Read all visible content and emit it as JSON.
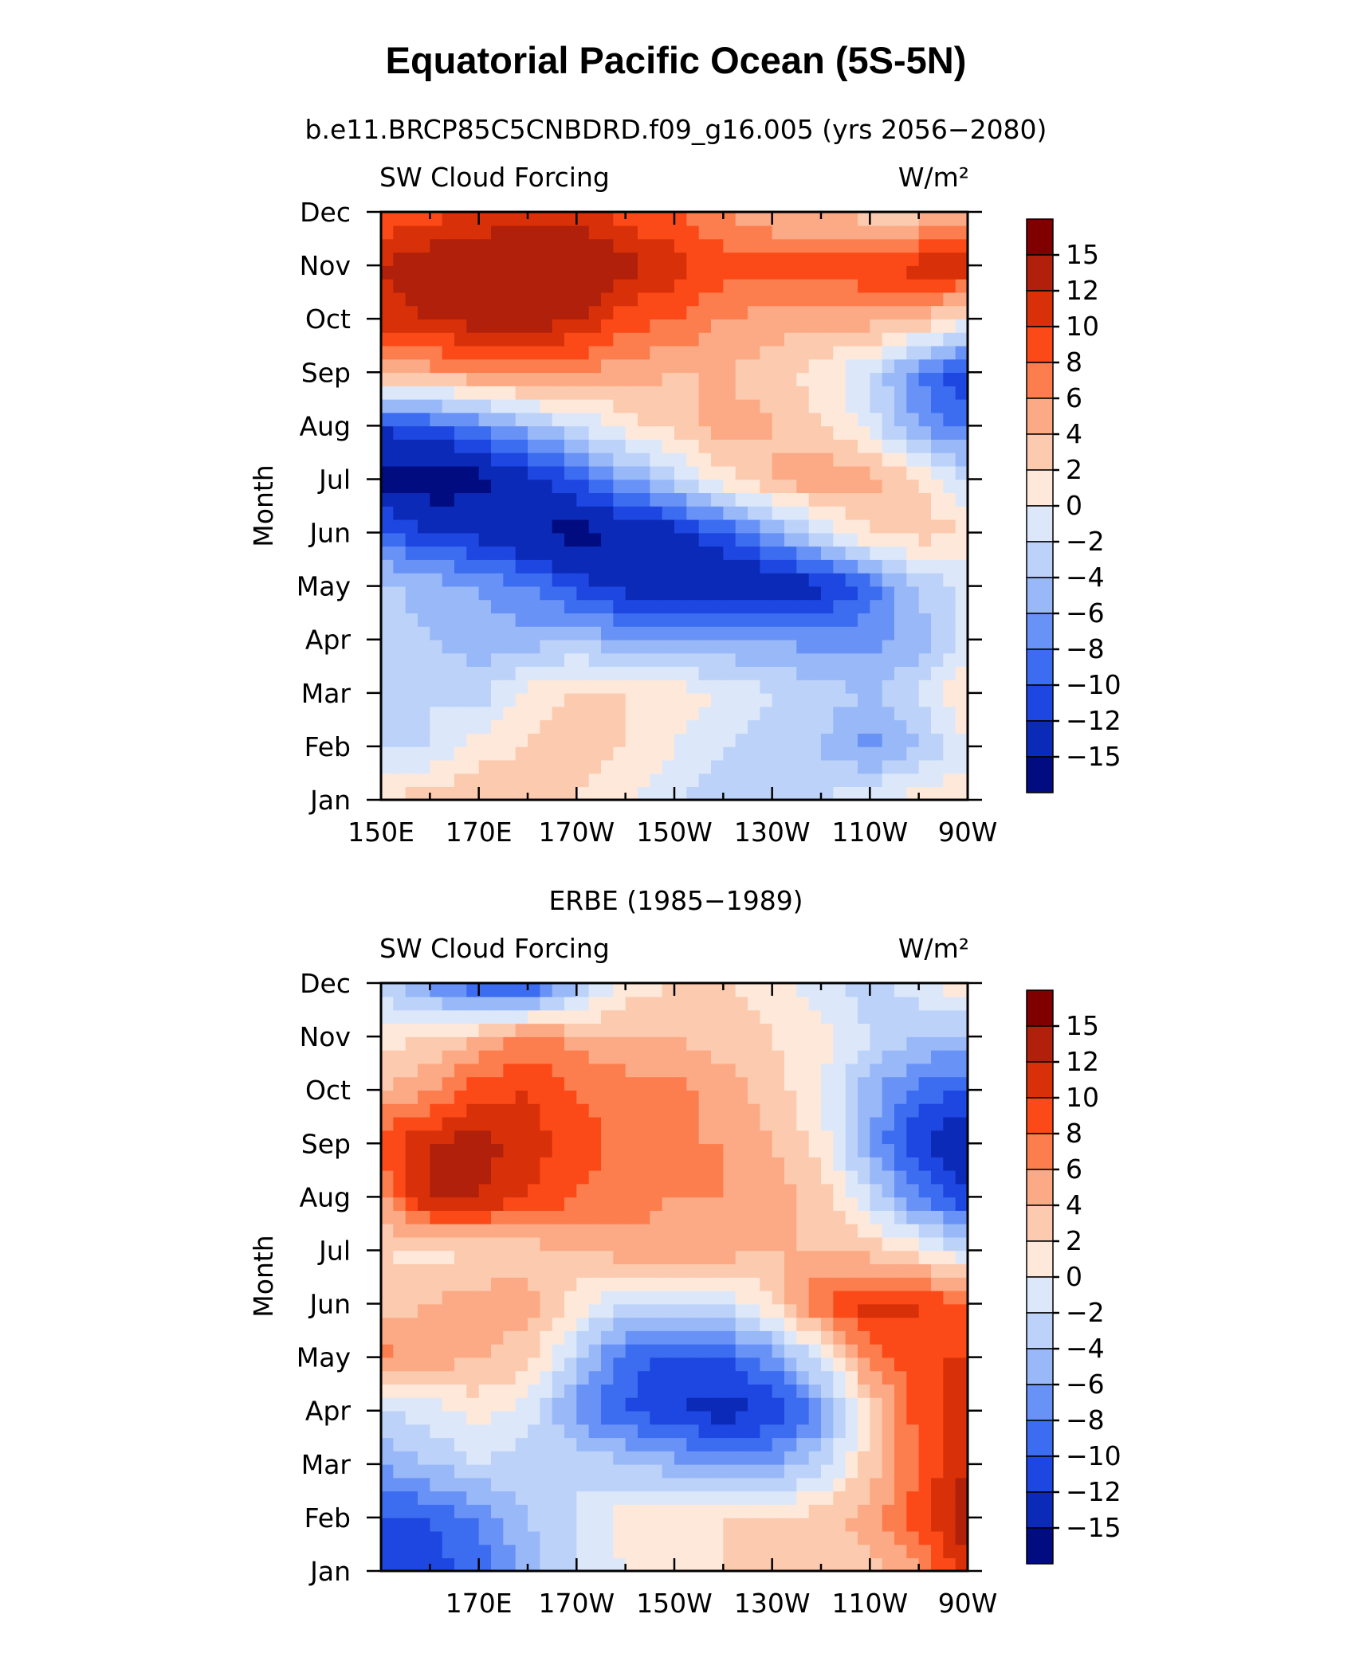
{
  "title": "Equatorial Pacific Ocean (5S-5N)",
  "colorbar": {
    "labels": [
      "15",
      "12",
      "10",
      "8",
      "6",
      "4",
      "2",
      "0",
      "−2",
      "−4",
      "−6",
      "−8",
      "−10",
      "−12",
      "−15"
    ],
    "colors": [
      "#800000",
      "#B0200A",
      "#D83008",
      "#FB4A18",
      "#FC7E4E",
      "#FCAA86",
      "#FCCAAE",
      "#FEE8DA",
      "#DCE8FA",
      "#BCD2F8",
      "#98B8F8",
      "#6892F6",
      "#3C6CF0",
      "#1E46E0",
      "#0C2AB8",
      "#000C80"
    ]
  },
  "chart_data": [
    {
      "type": "heatmap",
      "subtitle": "b.e11.BRCP85C5CNBDRD.f09_g16.005 (yrs 2056−2080)",
      "left_label": "SW Cloud Forcing",
      "right_label": "W/m²",
      "ylabel": "Month",
      "xticks": [
        "150E",
        "170E",
        "170W",
        "150W",
        "130W",
        "110W",
        "90W"
      ],
      "yticks": [
        "Jan",
        "Feb",
        "Mar",
        "Apr",
        "May",
        "Jun",
        "Jul",
        "Aug",
        "Sep",
        "Oct",
        "Nov",
        "Dec"
      ],
      "xlim": [
        150,
        270
      ],
      "units": "W/m²",
      "lon": [
        150,
        160,
        170,
        180,
        190,
        200,
        210,
        220,
        230,
        240,
        250,
        260,
        270
      ],
      "values": [
        [
          2,
          3,
          4,
          3,
          2,
          0,
          -2,
          -4,
          -2,
          -2,
          0,
          1,
          2
        ],
        [
          -2,
          -2,
          1,
          2,
          3,
          2,
          0,
          -2,
          -3,
          -4,
          -7,
          -4,
          -1
        ],
        [
          -3,
          -2,
          -3,
          1,
          2,
          2,
          1,
          0,
          -2,
          -3,
          -4,
          -2,
          3
        ],
        [
          -3,
          -4,
          -5,
          -5,
          -4,
          -6,
          -6,
          -6,
          -6,
          -7,
          -7,
          -5,
          -1
        ],
        [
          -3,
          -5,
          -6,
          -8,
          -11,
          -13,
          -14,
          -15,
          -15,
          -13,
          -9,
          -4,
          -1
        ],
        [
          -9,
          -12,
          -13,
          -15,
          -16,
          -15,
          -13,
          -10,
          -6,
          -2,
          2,
          3,
          2
        ],
        [
          -16,
          -17,
          -16,
          -13,
          -10,
          -6,
          -3,
          1,
          4,
          6,
          5,
          2,
          -2
        ],
        [
          -12,
          -10,
          -8,
          -5,
          -2,
          1,
          3,
          5,
          4,
          2,
          -1,
          -6,
          -9
        ],
        [
          4,
          5,
          6,
          7,
          6,
          5,
          4,
          4,
          3,
          1,
          -2,
          -8,
          -12
        ],
        [
          11,
          12,
          13,
          14,
          12,
          9,
          8,
          6,
          5,
          5,
          5,
          4,
          1
        ],
        [
          12,
          14,
          15,
          15,
          15,
          13,
          11,
          9,
          9,
          9,
          10,
          11,
          12
        ],
        [
          8,
          9,
          10,
          11,
          11,
          9,
          8,
          6,
          4,
          4,
          3,
          3,
          4
        ]
      ]
    },
    {
      "type": "heatmap",
      "subtitle": "ERBE (1985−1989)",
      "left_label": "SW Cloud Forcing",
      "right_label": "W/m²",
      "ylabel": "Month",
      "xticks": [
        "170E",
        "170W",
        "150W",
        "130W",
        "110W",
        "90W"
      ],
      "yticks": [
        "Jan",
        "Feb",
        "Mar",
        "Apr",
        "May",
        "Jun",
        "Jul",
        "Aug",
        "Sep",
        "Oct",
        "Nov",
        "Dec"
      ],
      "xlim": [
        150,
        270
      ],
      "units": "W/m²",
      "lon": [
        150,
        160,
        170,
        180,
        190,
        200,
        210,
        220,
        230,
        240,
        250,
        260,
        270
      ],
      "values": [
        [
          -12,
          -11,
          -9,
          -5,
          -2,
          0,
          1,
          2,
          2,
          2,
          3,
          6,
          11
        ],
        [
          -10,
          -10,
          -8,
          -4,
          -2,
          1,
          2,
          2,
          2,
          3,
          5,
          9,
          14
        ],
        [
          -6,
          -4,
          -2,
          -3,
          -2,
          -4,
          -5,
          -7,
          -6,
          -3,
          3,
          8,
          12
        ],
        [
          -2,
          -1,
          1,
          -1,
          -7,
          -10,
          -12,
          -13,
          -12,
          -7,
          2,
          9,
          11
        ],
        [
          7,
          5,
          4,
          3,
          -3,
          -9,
          -11,
          -10,
          -7,
          -1,
          7,
          10,
          10
        ],
        [
          3,
          4,
          5,
          5,
          1,
          -2,
          -3,
          -2,
          2,
          8,
          11,
          10,
          8
        ],
        [
          2,
          1,
          2,
          3,
          4,
          5,
          5,
          5,
          4,
          4,
          3,
          1,
          -2
        ],
        [
          5,
          13,
          12,
          10,
          8,
          7,
          6,
          6,
          5,
          3,
          -2,
          -8,
          -12
        ],
        [
          9,
          12,
          13,
          11,
          9,
          7,
          6,
          6,
          4,
          1,
          -6,
          -12,
          -15
        ],
        [
          4,
          6,
          9,
          10,
          8,
          7,
          7,
          5,
          3,
          0,
          -5,
          -9,
          -10
        ],
        [
          1,
          2,
          4,
          7,
          5,
          4,
          4,
          3,
          2,
          1,
          -2,
          -4,
          -5
        ],
        [
          -3,
          -7,
          -11,
          -12,
          -5,
          1,
          2,
          2,
          1,
          -1,
          -3,
          -1,
          3
        ]
      ]
    }
  ]
}
